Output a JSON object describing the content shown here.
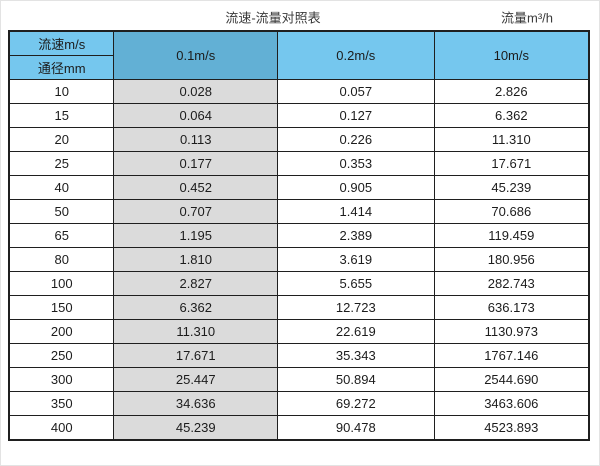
{
  "page": {
    "title": "流速-流量对照表",
    "unit_label": "流量m³/h"
  },
  "colors": {
    "header_light_blue": "#75c7ee",
    "header_dark_blue": "#62b0d5",
    "highlight_column_gray": "#dbdbdb",
    "grid_border": "#1f1f1f",
    "text": "#1c1c1c"
  },
  "table": {
    "corner_top_label": "流速m/s",
    "corner_bottom_label": "通径mm",
    "columns": [
      "0.1m/s",
      "0.2m/s",
      "10m/s"
    ],
    "rows": [
      [
        "10",
        "0.028",
        "0.057",
        "2.826"
      ],
      [
        "15",
        "0.064",
        "0.127",
        "6.362"
      ],
      [
        "20",
        "0.113",
        "0.226",
        "11.310"
      ],
      [
        "25",
        "0.177",
        "0.353",
        "17.671"
      ],
      [
        "40",
        "0.452",
        "0.905",
        "45.239"
      ],
      [
        "50",
        "0.707",
        "1.414",
        "70.686"
      ],
      [
        "65",
        "1.195",
        "2.389",
        "119.459"
      ],
      [
        "80",
        "1.810",
        "3.619",
        "180.956"
      ],
      [
        "100",
        "2.827",
        "5.655",
        "282.743"
      ],
      [
        "150",
        "6.362",
        "12.723",
        "636.173"
      ],
      [
        "200",
        "11.310",
        "22.619",
        "1130.973"
      ],
      [
        "250",
        "17.671",
        "35.343",
        "1767.146"
      ],
      [
        "300",
        "25.447",
        "50.894",
        "2544.690"
      ],
      [
        "350",
        "34.636",
        "69.272",
        "3463.606"
      ],
      [
        "400",
        "45.239",
        "90.478",
        "4523.893"
      ]
    ]
  },
  "chart_data": {
    "type": "table",
    "title": "流速-流量对照表",
    "unit": "流量m³/h",
    "column_header_label": "流速m/s",
    "row_header_label": "通径mm",
    "columns": [
      "0.1m/s",
      "0.2m/s",
      "10m/s"
    ],
    "diameters_mm": [
      10,
      15,
      20,
      25,
      40,
      50,
      65,
      80,
      100,
      150,
      200,
      250,
      300,
      350,
      400
    ],
    "series": [
      {
        "name": "0.1m/s",
        "values": [
          0.028,
          0.064,
          0.113,
          0.177,
          0.452,
          0.707,
          1.195,
          1.81,
          2.827,
          6.362,
          11.31,
          17.671,
          25.447,
          34.636,
          45.239
        ]
      },
      {
        "name": "0.2m/s",
        "values": [
          0.057,
          0.127,
          0.226,
          0.353,
          0.905,
          1.414,
          2.389,
          3.619,
          5.655,
          12.723,
          22.619,
          35.343,
          50.894,
          69.272,
          90.478
        ]
      },
      {
        "name": "10m/s",
        "values": [
          2.826,
          6.362,
          11.31,
          17.671,
          45.239,
          70.686,
          119.459,
          180.956,
          282.743,
          636.173,
          1130.973,
          1767.146,
          2544.69,
          3463.606,
          4523.893
        ]
      }
    ]
  }
}
